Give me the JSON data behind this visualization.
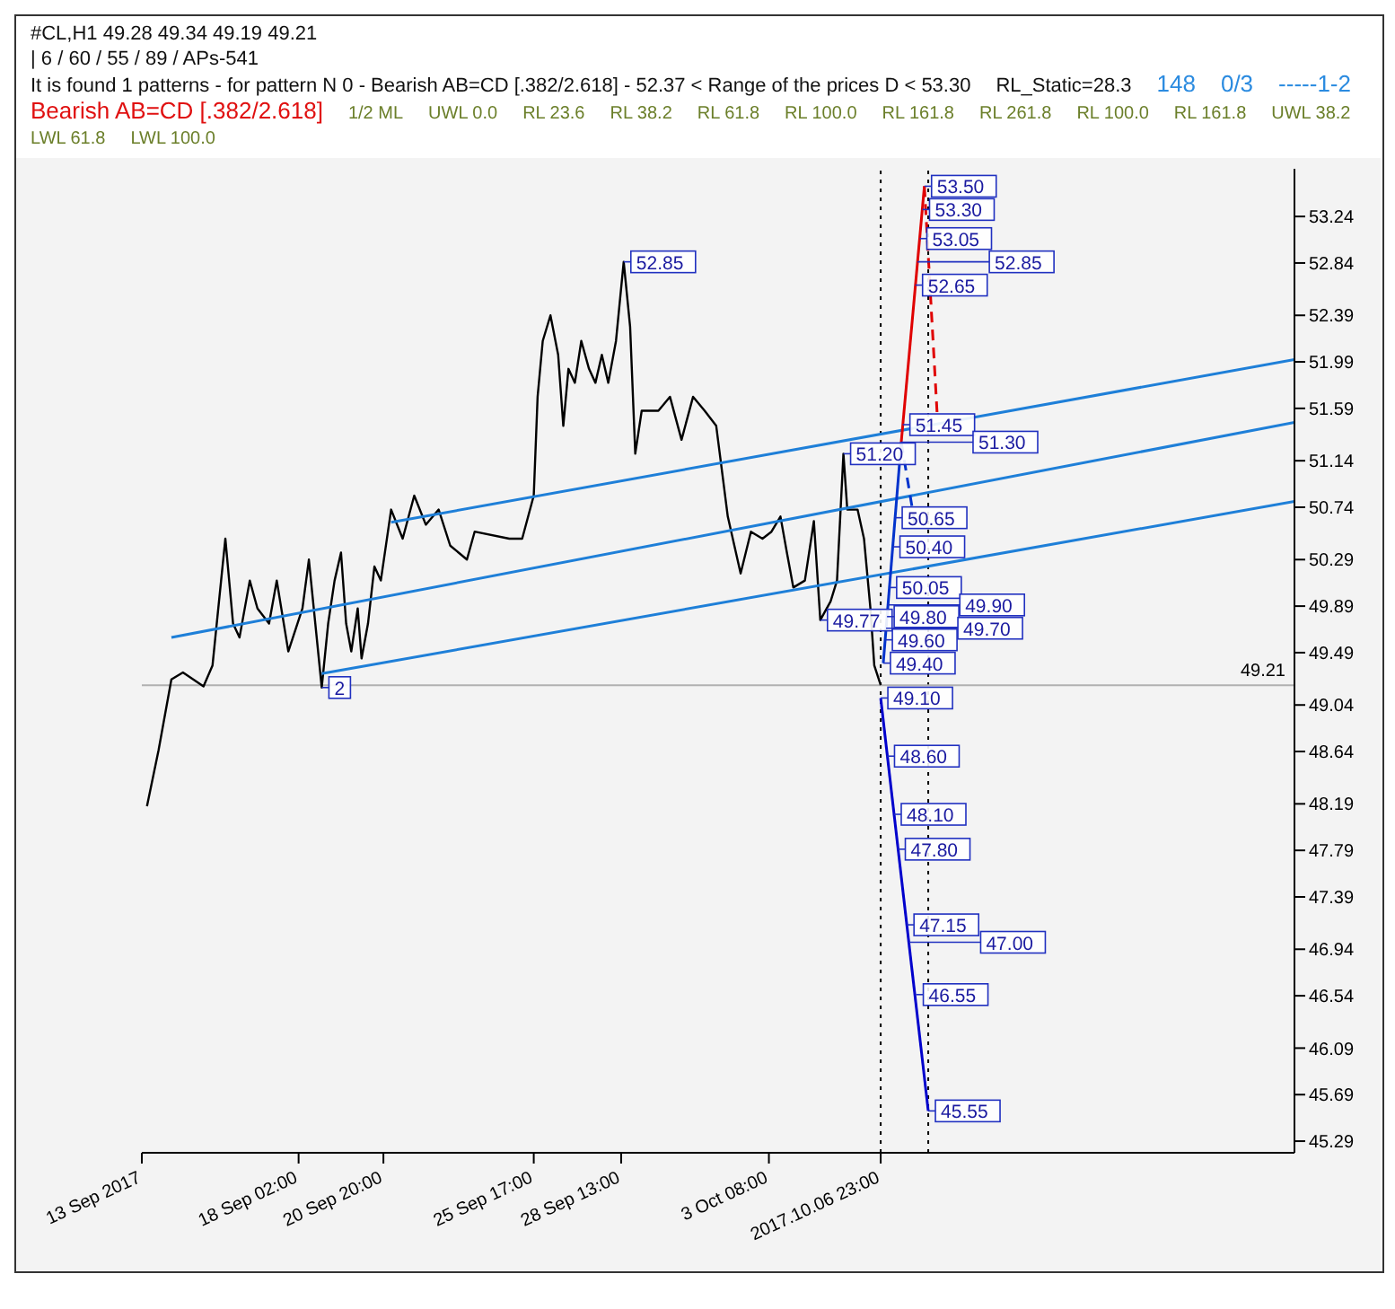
{
  "chart_data": {
    "type": "line",
    "title": "#CL,H1  49.28 49.34 49.19 49.21",
    "subtitle": "| 6 / 60 / 55 / 89 / APs-541",
    "annotations": [
      "It is found 1 patterns  -  for pattern N 0 - Bearish AB=CD [.382/2.618] - 52.37 < Range of the prices D < 53.30",
      "RL_Static=28.3",
      "148",
      "0/3",
      "-----1-2",
      "Bearish AB=CD [.382/2.618]",
      "1/2 ML",
      "UWL 0.0",
      "RL 23.6",
      "RL 38.2",
      "RL 61.8",
      "RL 100.0",
      "RL 161.8",
      "RL 261.8",
      "RL 100.0",
      "RL 161.8",
      "UWL 38.2",
      "LWL 61.8",
      "LWL 100.0",
      {
        "text": "52.85",
        "x": "2017-09-28T15:00",
        "y": 52.85
      },
      {
        "text": "51.20",
        "x": "2017-10-05T18:00",
        "y": 51.2
      },
      {
        "text": "49.77",
        "x": "2017-10-05T00:00",
        "y": 49.77
      },
      {
        "text": "2",
        "x": "2017-09-18T20:00",
        "y": 49.19
      },
      {
        "text": "53.50",
        "x": "2017-10-08T09:00",
        "y": 53.5
      },
      {
        "text": "53.30",
        "x": "2017-10-08T07:25",
        "y": 53.3
      },
      {
        "text": "53.05",
        "x": "2017-10-08T05:20",
        "y": 53.05
      },
      {
        "text": "52.85",
        "x": "2017-10-08T03:40",
        "y": 52.85
      },
      {
        "text": "52.65",
        "x": "2017-10-08T02:00",
        "y": 52.65
      },
      {
        "text": "51.45",
        "x": "2017-10-07T16:10",
        "y": 51.45
      },
      {
        "text": "51.30",
        "x": "2017-10-07T15:00",
        "y": 51.3
      },
      {
        "text": "50.65",
        "x": "2017-10-07T10:10",
        "y": 50.65
      },
      {
        "text": "50.40",
        "x": "2017-10-07T08:25",
        "y": 50.4
      },
      {
        "text": "50.05",
        "x": "2017-10-07T05:50",
        "y": 50.05
      },
      {
        "text": "49.90",
        "x": "2017-10-07T04:40",
        "y": 49.9
      },
      {
        "text": "49.80",
        "x": "2017-10-07T03:55",
        "y": 49.8
      },
      {
        "text": "49.70",
        "x": "2017-10-07T03:10",
        "y": 49.7
      },
      {
        "text": "49.60",
        "x": "2017-10-07T02:30",
        "y": 49.6
      },
      {
        "text": "49.40",
        "x": "2017-10-07T01:00",
        "y": 49.4
      },
      {
        "text": "49.10",
        "x": "2017-10-06T23:00",
        "y": 49.1
      },
      {
        "text": "48.60",
        "x": "2017-10-07T04:10",
        "y": 48.6
      },
      {
        "text": "48.10",
        "x": "2017-10-07T09:25",
        "y": 48.1
      },
      {
        "text": "47.80",
        "x": "2017-10-07T12:35",
        "y": 47.8
      },
      {
        "text": "47.15",
        "x": "2017-10-07T19:20",
        "y": 47.15
      },
      {
        "text": "47.00",
        "x": "2017-10-07T20:55",
        "y": 47.0
      },
      {
        "text": "46.55",
        "x": "2017-10-08T02:35",
        "y": 46.55
      },
      {
        "text": "45.55",
        "x": "2017-10-08T12:00",
        "y": 45.55
      }
    ],
    "xlim": [
      "2017-09-13T00:00",
      "2017-10-20T09:00"
    ],
    "xticks": [
      {
        "value": "2017-09-13T00:00",
        "label": "13 Sep 2017"
      },
      {
        "value": "2017-09-18T02:00",
        "label": "18 Sep 02:00"
      },
      {
        "value": "2017-09-20T20:00",
        "label": "20 Sep 20:00"
      },
      {
        "value": "2017-09-25T17:00",
        "label": "25 Sep 17:00"
      },
      {
        "value": "2017-09-28T13:00",
        "label": "28 Sep 13:00"
      },
      {
        "value": "2017-10-03T08:00",
        "label": "3 Oct 08:00"
      },
      {
        "value": "2017-10-06T23:00",
        "label": "2017.10.06 23:00"
      }
    ],
    "ylim": [
      45.19,
      53.65
    ],
    "yticks": [
      45.29,
      45.69,
      46.09,
      46.54,
      46.94,
      47.39,
      47.79,
      48.19,
      48.64,
      49.04,
      49.49,
      49.89,
      50.29,
      50.74,
      51.14,
      51.59,
      51.99,
      52.39,
      52.84,
      53.24
    ],
    "grid": false,
    "ref_lines": [
      {
        "axis": "x",
        "value": "2017-10-06T23:00",
        "line_style": "dotted",
        "color": "#000000"
      },
      {
        "axis": "x",
        "value": "2017-10-08T12:00",
        "line_style": "dotted",
        "color": "#000000"
      },
      {
        "axis": "y",
        "value": 49.21,
        "label": "49.21",
        "line_style": "solid",
        "color": "#b0b0b0"
      }
    ],
    "series": [
      {
        "color": "#000000",
        "line_style": "solid",
        "x": [
          "2017-09-13T04:00",
          "2017-09-13T13:00",
          "2017-09-13T23:00",
          "2017-09-14T08:00",
          "2017-09-15T00:00",
          "2017-09-15T07:00",
          "2017-09-15T17:00",
          "2017-09-15T23:00",
          "2017-09-16T04:00",
          "2017-09-16T12:00",
          "2017-09-16T18:00",
          "2017-09-17T03:00",
          "2017-09-17T09:00",
          "2017-09-17T18:00",
          "2017-09-18T05:00",
          "2017-09-18T10:00",
          "2017-09-18T15:00",
          "2017-09-18T20:00",
          "2017-09-19T01:00",
          "2017-09-19T06:00",
          "2017-09-19T11:00",
          "2017-09-19T15:00",
          "2017-09-19T19:00",
          "2017-09-20T00:00",
          "2017-09-20T03:00",
          "2017-09-20T08:00",
          "2017-09-20T13:00",
          "2017-09-20T18:00",
          "2017-09-21T02:00",
          "2017-09-21T11:00",
          "2017-09-21T20:00",
          "2017-09-22T05:00",
          "2017-09-22T15:00",
          "2017-09-23T00:00",
          "2017-09-23T13:00",
          "2017-09-23T19:00",
          "2017-09-24T22:00",
          "2017-09-25T08:00",
          "2017-09-25T17:00",
          "2017-09-25T20:00",
          "2017-09-26T00:00",
          "2017-09-26T06:00",
          "2017-09-26T12:00",
          "2017-09-26T16:00",
          "2017-09-26T20:00",
          "2017-09-27T01:00",
          "2017-09-27T06:00",
          "2017-09-27T12:00",
          "2017-09-27T17:00",
          "2017-09-27T22:00",
          "2017-09-28T03:00",
          "2017-09-28T09:00",
          "2017-09-28T15:00",
          "2017-09-28T20:00",
          "2017-09-29T00:00",
          "2017-09-29T05:00",
          "2017-09-29T18:00",
          "2017-09-30T03:00",
          "2017-09-30T12:00",
          "2017-09-30T21:00",
          "2017-10-01T06:00",
          "2017-10-01T15:00",
          "2017-10-02T00:00",
          "2017-10-02T10:00",
          "2017-10-02T18:00",
          "2017-10-03T03:00",
          "2017-10-03T10:00",
          "2017-10-03T17:00",
          "2017-10-03T22:00",
          "2017-10-04T03:00",
          "2017-10-04T12:00",
          "2017-10-04T19:00",
          "2017-10-05T00:00",
          "2017-10-05T08:00",
          "2017-10-05T13:00",
          "2017-10-05T18:00",
          "2017-10-05T21:00",
          "2017-10-06T05:00",
          "2017-10-06T10:00",
          "2017-10-06T15:00",
          "2017-10-06T18:00",
          "2017-10-06T23:00"
        ],
        "values": [
          48.17,
          48.65,
          49.26,
          49.32,
          49.2,
          49.38,
          50.47,
          49.74,
          49.62,
          50.11,
          49.87,
          49.74,
          50.11,
          49.5,
          49.87,
          50.29,
          49.74,
          49.19,
          49.74,
          50.11,
          50.35,
          49.74,
          49.5,
          49.87,
          49.44,
          49.74,
          50.23,
          50.11,
          50.72,
          50.47,
          50.84,
          50.59,
          50.72,
          50.41,
          50.29,
          50.53,
          50.47,
          50.47,
          50.84,
          51.69,
          52.17,
          52.39,
          52.05,
          51.44,
          51.93,
          51.81,
          52.17,
          51.93,
          51.81,
          52.05,
          51.81,
          52.17,
          52.85,
          52.29,
          51.2,
          51.57,
          51.57,
          51.69,
          51.32,
          51.69,
          51.57,
          51.44,
          50.66,
          50.17,
          50.53,
          50.47,
          50.53,
          50.66,
          50.35,
          50.05,
          50.11,
          50.62,
          49.77,
          49.93,
          50.11,
          51.2,
          50.72,
          50.72,
          50.47,
          49.87,
          49.38,
          49.21
        ]
      },
      {
        "color": "#1e7fd8",
        "line_style": "solid",
        "x": [
          "2017-09-21T02:00",
          "2017-10-20T09:00"
        ],
        "values": [
          50.61,
          52.01
        ]
      },
      {
        "color": "#1e7fd8",
        "line_style": "solid",
        "x": [
          "2017-09-13T23:00",
          "2017-10-20T09:00"
        ],
        "values": [
          49.62,
          51.47
        ]
      },
      {
        "color": "#1e7fd8",
        "line_style": "solid",
        "x": [
          "2017-09-18T20:00",
          "2017-10-20T09:00"
        ],
        "values": [
          49.31,
          50.79
        ]
      },
      {
        "color": "#0033cc",
        "line_style": "solid",
        "x": [
          "2017-10-07T01:00",
          "2017-10-07T15:00"
        ],
        "values": [
          49.4,
          51.3
        ]
      },
      {
        "color": "#0033cc",
        "line_style": "dashed",
        "x": [
          "2017-10-07T15:00",
          "2017-10-08T02:00"
        ],
        "values": [
          51.3,
          50.57
        ]
      },
      {
        "color": "#e00000",
        "line_style": "solid",
        "x": [
          "2017-10-07T15:00",
          "2017-10-08T09:00"
        ],
        "values": [
          51.3,
          53.5
        ]
      },
      {
        "color": "#e00000",
        "line_style": "dashed",
        "x": [
          "2017-10-08T09:00",
          "2017-10-08T19:00"
        ],
        "values": [
          53.5,
          51.53
        ]
      },
      {
        "color": "#0000cc",
        "line_style": "solid",
        "x": [
          "2017-10-06T23:00",
          "2017-10-08T12:00"
        ],
        "values": [
          49.1,
          45.55
        ]
      }
    ]
  }
}
